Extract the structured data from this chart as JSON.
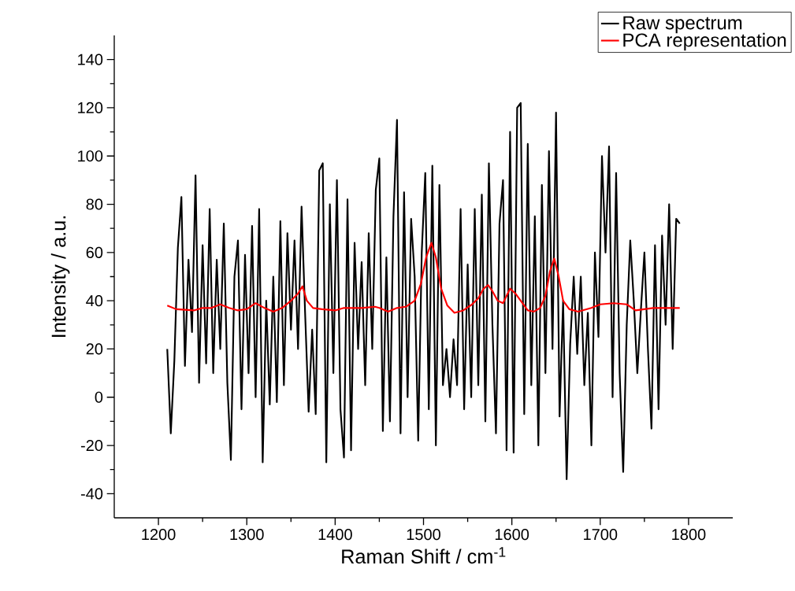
{
  "chart_data": {
    "type": "line",
    "xlabel": "Raman Shift / cm$^{-1}$",
    "ylabel": "Intensity / a.u.",
    "xlim": [
      1150,
      1850
    ],
    "ylim": [
      -50,
      150
    ],
    "xticks": [
      1200,
      1300,
      1400,
      1500,
      1600,
      1700,
      1800
    ],
    "yticks": [
      -40,
      -20,
      0,
      20,
      40,
      60,
      80,
      100,
      120,
      140
    ],
    "legend": "top right",
    "grid": false,
    "marker": "none",
    "line_style": "solid",
    "series": [
      {
        "name": "Raw spectrum",
        "color": "#000000",
        "x": [
          1210,
          1214,
          1218,
          1222,
          1226,
          1230,
          1234,
          1238,
          1242,
          1246,
          1250,
          1254,
          1258,
          1262,
          1266,
          1270,
          1274,
          1278,
          1282,
          1286,
          1290,
          1294,
          1298,
          1302,
          1306,
          1310,
          1314,
          1318,
          1322,
          1326,
          1330,
          1334,
          1338,
          1342,
          1346,
          1350,
          1354,
          1358,
          1362,
          1366,
          1370,
          1374,
          1378,
          1382,
          1386,
          1390,
          1394,
          1398,
          1402,
          1406,
          1410,
          1414,
          1418,
          1422,
          1426,
          1430,
          1434,
          1438,
          1442,
          1446,
          1450,
          1454,
          1458,
          1462,
          1466,
          1470,
          1474,
          1478,
          1482,
          1486,
          1490,
          1494,
          1498,
          1502,
          1506,
          1510,
          1514,
          1518,
          1522,
          1526,
          1530,
          1534,
          1538,
          1542,
          1546,
          1550,
          1554,
          1558,
          1562,
          1566,
          1570,
          1574,
          1578,
          1582,
          1586,
          1590,
          1594,
          1598,
          1602,
          1606,
          1610,
          1614,
          1618,
          1622,
          1626,
          1630,
          1634,
          1638,
          1642,
          1646,
          1650,
          1654,
          1658,
          1662,
          1666,
          1670,
          1674,
          1678,
          1682,
          1686,
          1690,
          1694,
          1698,
          1702,
          1706,
          1710,
          1714,
          1718,
          1722,
          1726,
          1730,
          1734,
          1738,
          1742,
          1746,
          1750,
          1754,
          1758,
          1762,
          1766,
          1770,
          1774,
          1778,
          1782,
          1786,
          1790
        ],
        "values": [
          20,
          -15,
          15,
          62,
          83,
          13,
          57,
          27,
          92,
          6,
          63,
          14,
          78,
          10,
          57,
          20,
          72,
          6,
          -26,
          50,
          65,
          -5,
          59,
          10,
          71,
          0,
          78,
          -27,
          40,
          -3,
          50,
          -2,
          73,
          5,
          68,
          28,
          65,
          20,
          79,
          35,
          -6,
          28,
          -7,
          94,
          97,
          -27,
          80,
          10,
          90,
          -5,
          -25,
          82,
          -22,
          64,
          20,
          56,
          5,
          68,
          20,
          86,
          99,
          -14,
          58,
          -10,
          75,
          115,
          -15,
          85,
          0,
          74,
          50,
          -18,
          60,
          93,
          -5,
          96,
          -20,
          88,
          5,
          20,
          0,
          24,
          5,
          78,
          -5,
          55,
          0,
          78,
          5,
          84,
          -10,
          97,
          30,
          -15,
          72,
          90,
          -22,
          110,
          -23,
          120,
          122,
          -7,
          105,
          5,
          75,
          -20,
          88,
          10,
          102,
          20,
          118,
          -8,
          40,
          -34,
          22,
          50,
          18,
          50,
          5,
          35,
          -20,
          60,
          25,
          100,
          60,
          104,
          0,
          93,
          10,
          -31,
          30,
          65,
          40,
          10,
          36,
          60,
          20,
          -13,
          63,
          -5,
          67,
          30,
          80,
          20,
          74,
          72
        ]
      },
      {
        "name": "PCA representation",
        "color": "#ff0000",
        "x": [
          1210,
          1220,
          1240,
          1250,
          1260,
          1270,
          1280,
          1290,
          1300,
          1310,
          1320,
          1330,
          1340,
          1350,
          1358,
          1363,
          1368,
          1375,
          1385,
          1400,
          1410,
          1420,
          1430,
          1445,
          1450,
          1460,
          1470,
          1480,
          1490,
          1497,
          1503,
          1509,
          1514,
          1520,
          1527,
          1535,
          1545,
          1555,
          1562,
          1568,
          1573,
          1578,
          1584,
          1590,
          1598,
          1604,
          1610,
          1618,
          1625,
          1632,
          1638,
          1643,
          1648,
          1653,
          1658,
          1665,
          1675,
          1690,
          1700,
          1715,
          1730,
          1740,
          1750,
          1760,
          1790
        ],
        "values": [
          38,
          36.5,
          36,
          37,
          37,
          38.5,
          37,
          36,
          36.5,
          39,
          37,
          35.5,
          37,
          40,
          43,
          46,
          40,
          37,
          36.5,
          36,
          37,
          37,
          37,
          37.5,
          37,
          35.5,
          37,
          37.5,
          40,
          47,
          58,
          64,
          58,
          45,
          38,
          35,
          36,
          38.5,
          41,
          45,
          46.5,
          44,
          40,
          39,
          45,
          43,
          40,
          36,
          35.5,
          37,
          42,
          52,
          57.5,
          50,
          40,
          36.5,
          35.5,
          37,
          38.5,
          39,
          38.5,
          36,
          36.5,
          37,
          37
        ]
      }
    ]
  }
}
